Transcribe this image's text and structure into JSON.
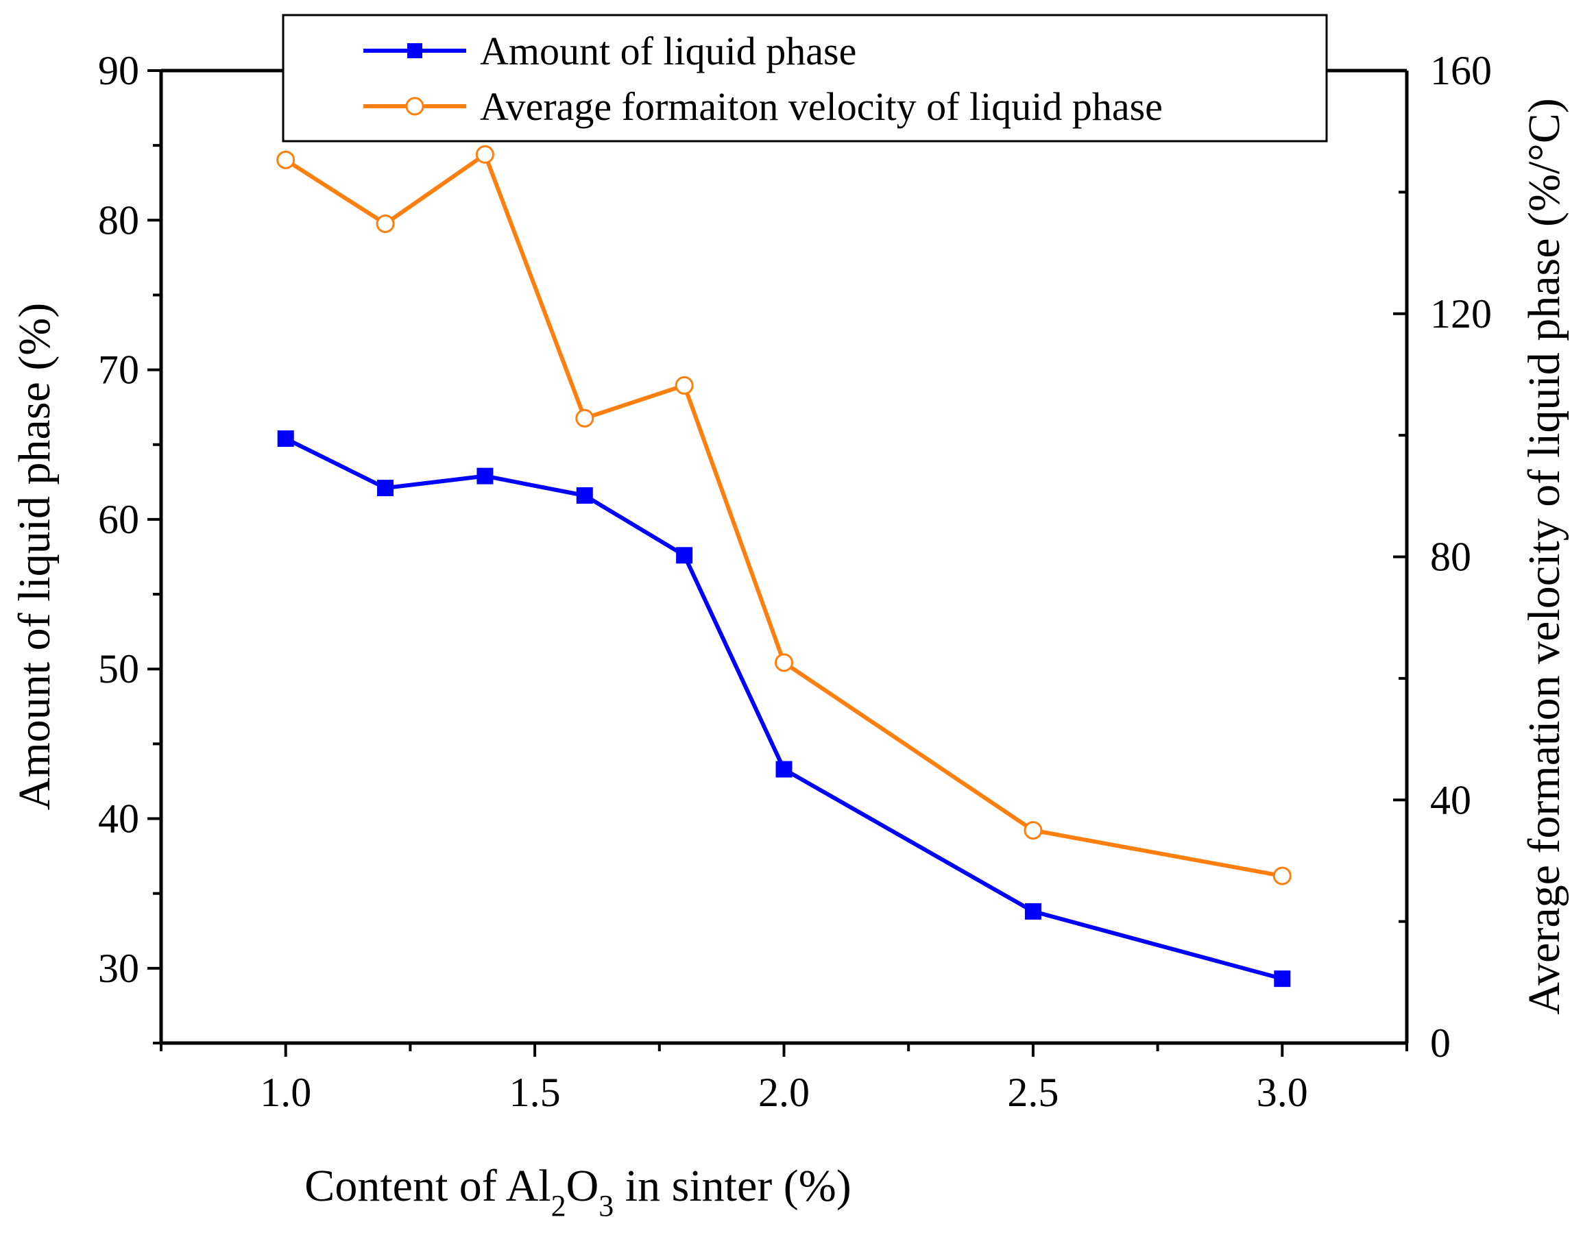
{
  "chart_data": {
    "type": "line",
    "xlabel_prefix": "Content of Al",
    "xlabel_sub1": "2",
    "xlabel_mid": "O",
    "xlabel_sub2": "3",
    "xlabel_suffix": " in sinter (%)",
    "ylabel": "Amount of liquid phase (%)",
    "y2label": "Average formation velocity of liquid phase (%/°C)",
    "xlim": [
      0.75,
      3.25
    ],
    "ylim": [
      25,
      90
    ],
    "y2lim": [
      0,
      160
    ],
    "x_ticks": [
      "1.0",
      "1.5",
      "2.0",
      "2.5",
      "3.0"
    ],
    "y_ticks": [
      "30",
      "40",
      "50",
      "60",
      "70",
      "80",
      "90"
    ],
    "y2_ticks": [
      "0",
      "40",
      "80",
      "120",
      "160"
    ],
    "x": [
      1.0,
      1.2,
      1.4,
      1.6,
      1.8,
      2.0,
      2.5,
      3.0
    ],
    "series": [
      {
        "name": "Amount of liquid phase",
        "axis": "left",
        "marker": "filled-square",
        "color": "#0000ff",
        "values": [
          65.4,
          62.1,
          62.9,
          61.6,
          57.6,
          43.3,
          33.8,
          29.3
        ]
      },
      {
        "name": "Average formaiton velocity of liquid phase",
        "axis": "right",
        "marker": "open-circle",
        "color": "#ff7f0e",
        "values": [
          145.3,
          134.8,
          146.2,
          102.8,
          108.2,
          62.6,
          35.0,
          27.5
        ]
      }
    ],
    "legend_position": "top-center"
  }
}
